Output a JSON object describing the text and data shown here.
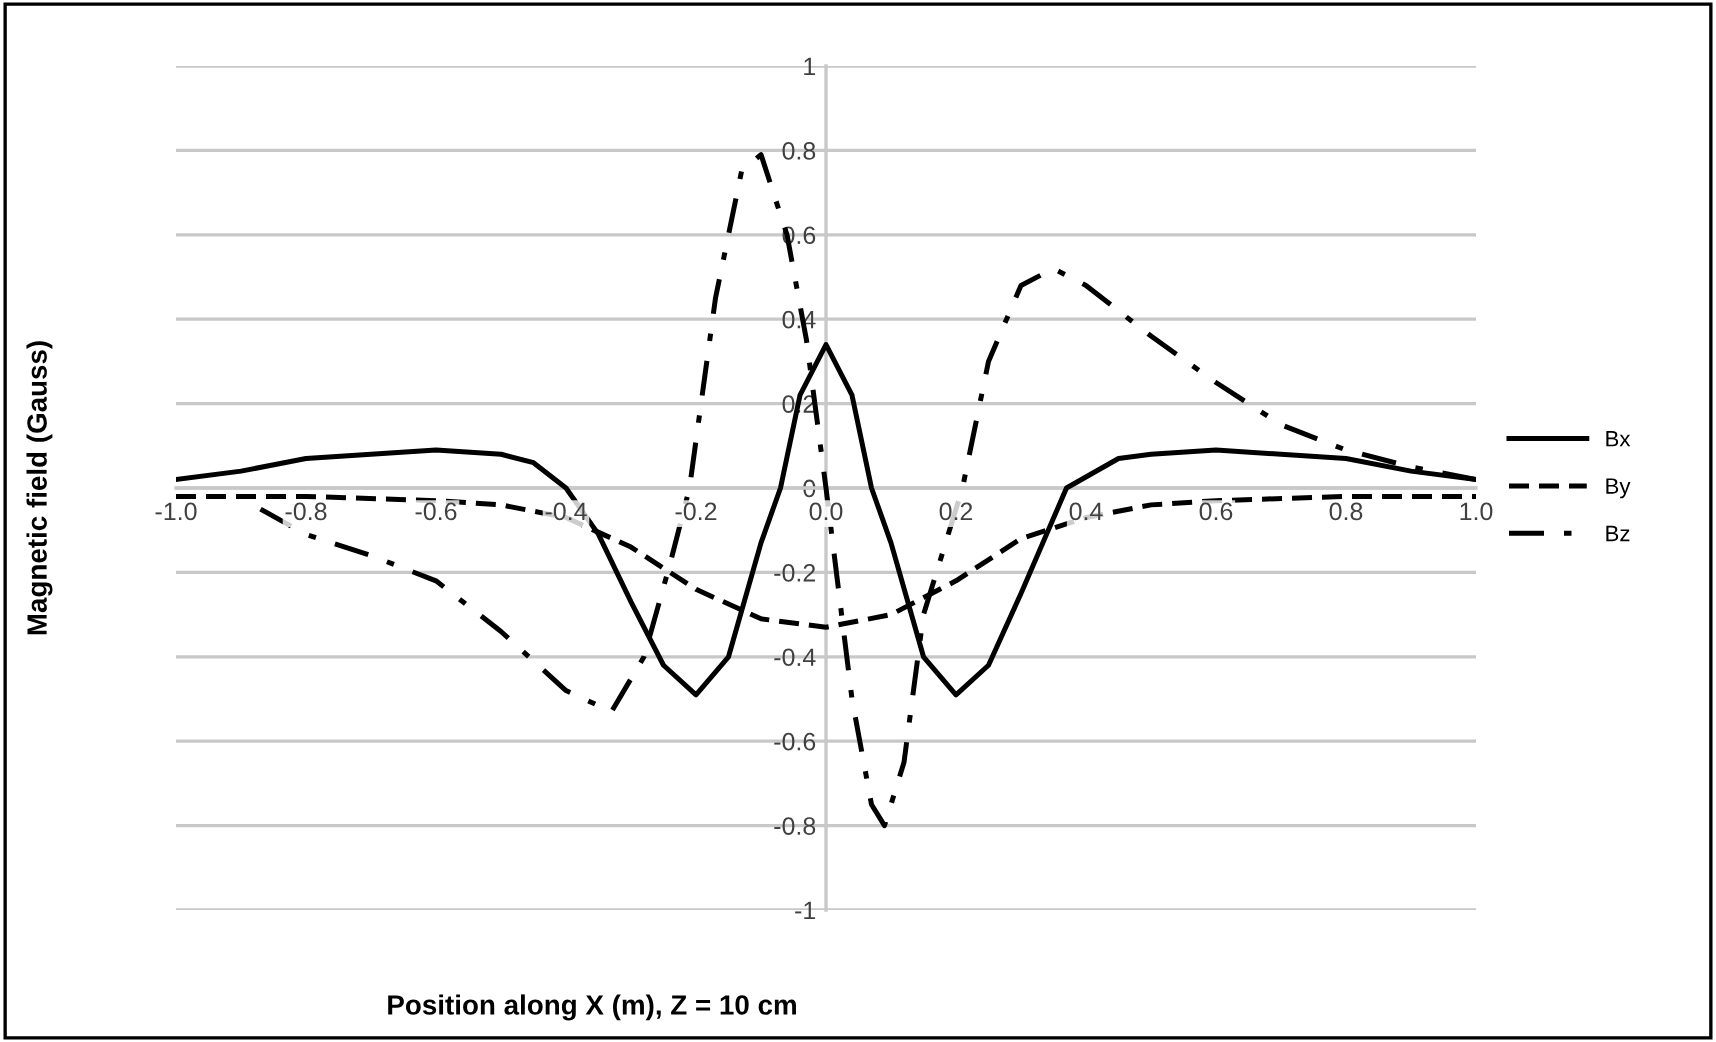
{
  "chart_data": {
    "type": "line",
    "xlabel": "Position along X (m), Z = 10 cm",
    "ylabel": "Magnetic field (Gauss)",
    "xlim": [
      -1.0,
      1.0
    ],
    "ylim": [
      -1,
      1
    ],
    "xticks": [
      {
        "value": -1.0,
        "label": "-1.0"
      },
      {
        "value": -0.8,
        "label": "-0.8"
      },
      {
        "value": -0.6,
        "label": "-0.6"
      },
      {
        "value": -0.4,
        "label": "-0.4"
      },
      {
        "value": -0.2,
        "label": "-0.2"
      },
      {
        "value": 0.0,
        "label": "0.0"
      },
      {
        "value": 0.2,
        "label": "0.2"
      },
      {
        "value": 0.4,
        "label": "0.4"
      },
      {
        "value": 0.6,
        "label": "0.6"
      },
      {
        "value": 0.8,
        "label": "0.8"
      },
      {
        "value": 1.0,
        "label": "1.0"
      }
    ],
    "yticks": [
      -1,
      -0.8,
      -0.6,
      -0.4,
      -0.2,
      0,
      0.2,
      0.4,
      0.6,
      0.8,
      1
    ],
    "grid": "y",
    "legend": "right",
    "marker": "none",
    "series": [
      {
        "name": "Bx",
        "color": "#000000",
        "line_style": "solid",
        "x": [
          -1.0,
          -0.9,
          -0.8,
          -0.7,
          -0.6,
          -0.5,
          -0.45,
          -0.4,
          -0.35,
          -0.3,
          -0.25,
          -0.2,
          -0.15,
          -0.1,
          -0.07,
          -0.04,
          0.0,
          0.04,
          0.07,
          0.1,
          0.15,
          0.2,
          0.25,
          0.3,
          0.37,
          0.45,
          0.5,
          0.6,
          0.7,
          0.8,
          0.9,
          1.0
        ],
        "values": [
          0.02,
          0.04,
          0.07,
          0.08,
          0.09,
          0.08,
          0.06,
          0.0,
          -0.11,
          -0.27,
          -0.42,
          -0.49,
          -0.4,
          -0.13,
          0.0,
          0.22,
          0.34,
          0.22,
          0.0,
          -0.13,
          -0.4,
          -0.49,
          -0.42,
          -0.25,
          0.0,
          0.07,
          0.08,
          0.09,
          0.08,
          0.07,
          0.04,
          0.02
        ]
      },
      {
        "name": "By",
        "color": "#000000",
        "line_style": "dashed",
        "x": [
          -1.0,
          -0.8,
          -0.6,
          -0.5,
          -0.4,
          -0.3,
          -0.2,
          -0.1,
          0.0,
          0.1,
          0.2,
          0.3,
          0.4,
          0.5,
          0.6,
          0.8,
          1.0
        ],
        "values": [
          -0.02,
          -0.02,
          -0.03,
          -0.04,
          -0.07,
          -0.14,
          -0.24,
          -0.31,
          -0.33,
          -0.3,
          -0.22,
          -0.12,
          -0.07,
          -0.04,
          -0.03,
          -0.02,
          -0.02
        ]
      },
      {
        "name": "Bz",
        "color": "#000000",
        "line_style": "dashdot",
        "x": [
          -0.87,
          -0.8,
          -0.7,
          -0.6,
          -0.5,
          -0.4,
          -0.33,
          -0.28,
          -0.24,
          -0.21,
          -0.17,
          -0.13,
          -0.1,
          -0.06,
          -0.03,
          0.0,
          0.04,
          0.07,
          0.09,
          0.12,
          0.15,
          0.21,
          0.25,
          0.3,
          0.35,
          0.4,
          0.5,
          0.6,
          0.7,
          0.8,
          0.9,
          1.0
        ],
        "values": [
          -0.05,
          -0.11,
          -0.16,
          -0.22,
          -0.34,
          -0.48,
          -0.53,
          -0.4,
          -0.18,
          0.0,
          0.45,
          0.75,
          0.79,
          0.6,
          0.35,
          0.0,
          -0.5,
          -0.75,
          -0.8,
          -0.65,
          -0.3,
          0.0,
          0.3,
          0.48,
          0.52,
          0.48,
          0.36,
          0.25,
          0.15,
          0.09,
          0.05,
          0.02
        ]
      }
    ]
  }
}
